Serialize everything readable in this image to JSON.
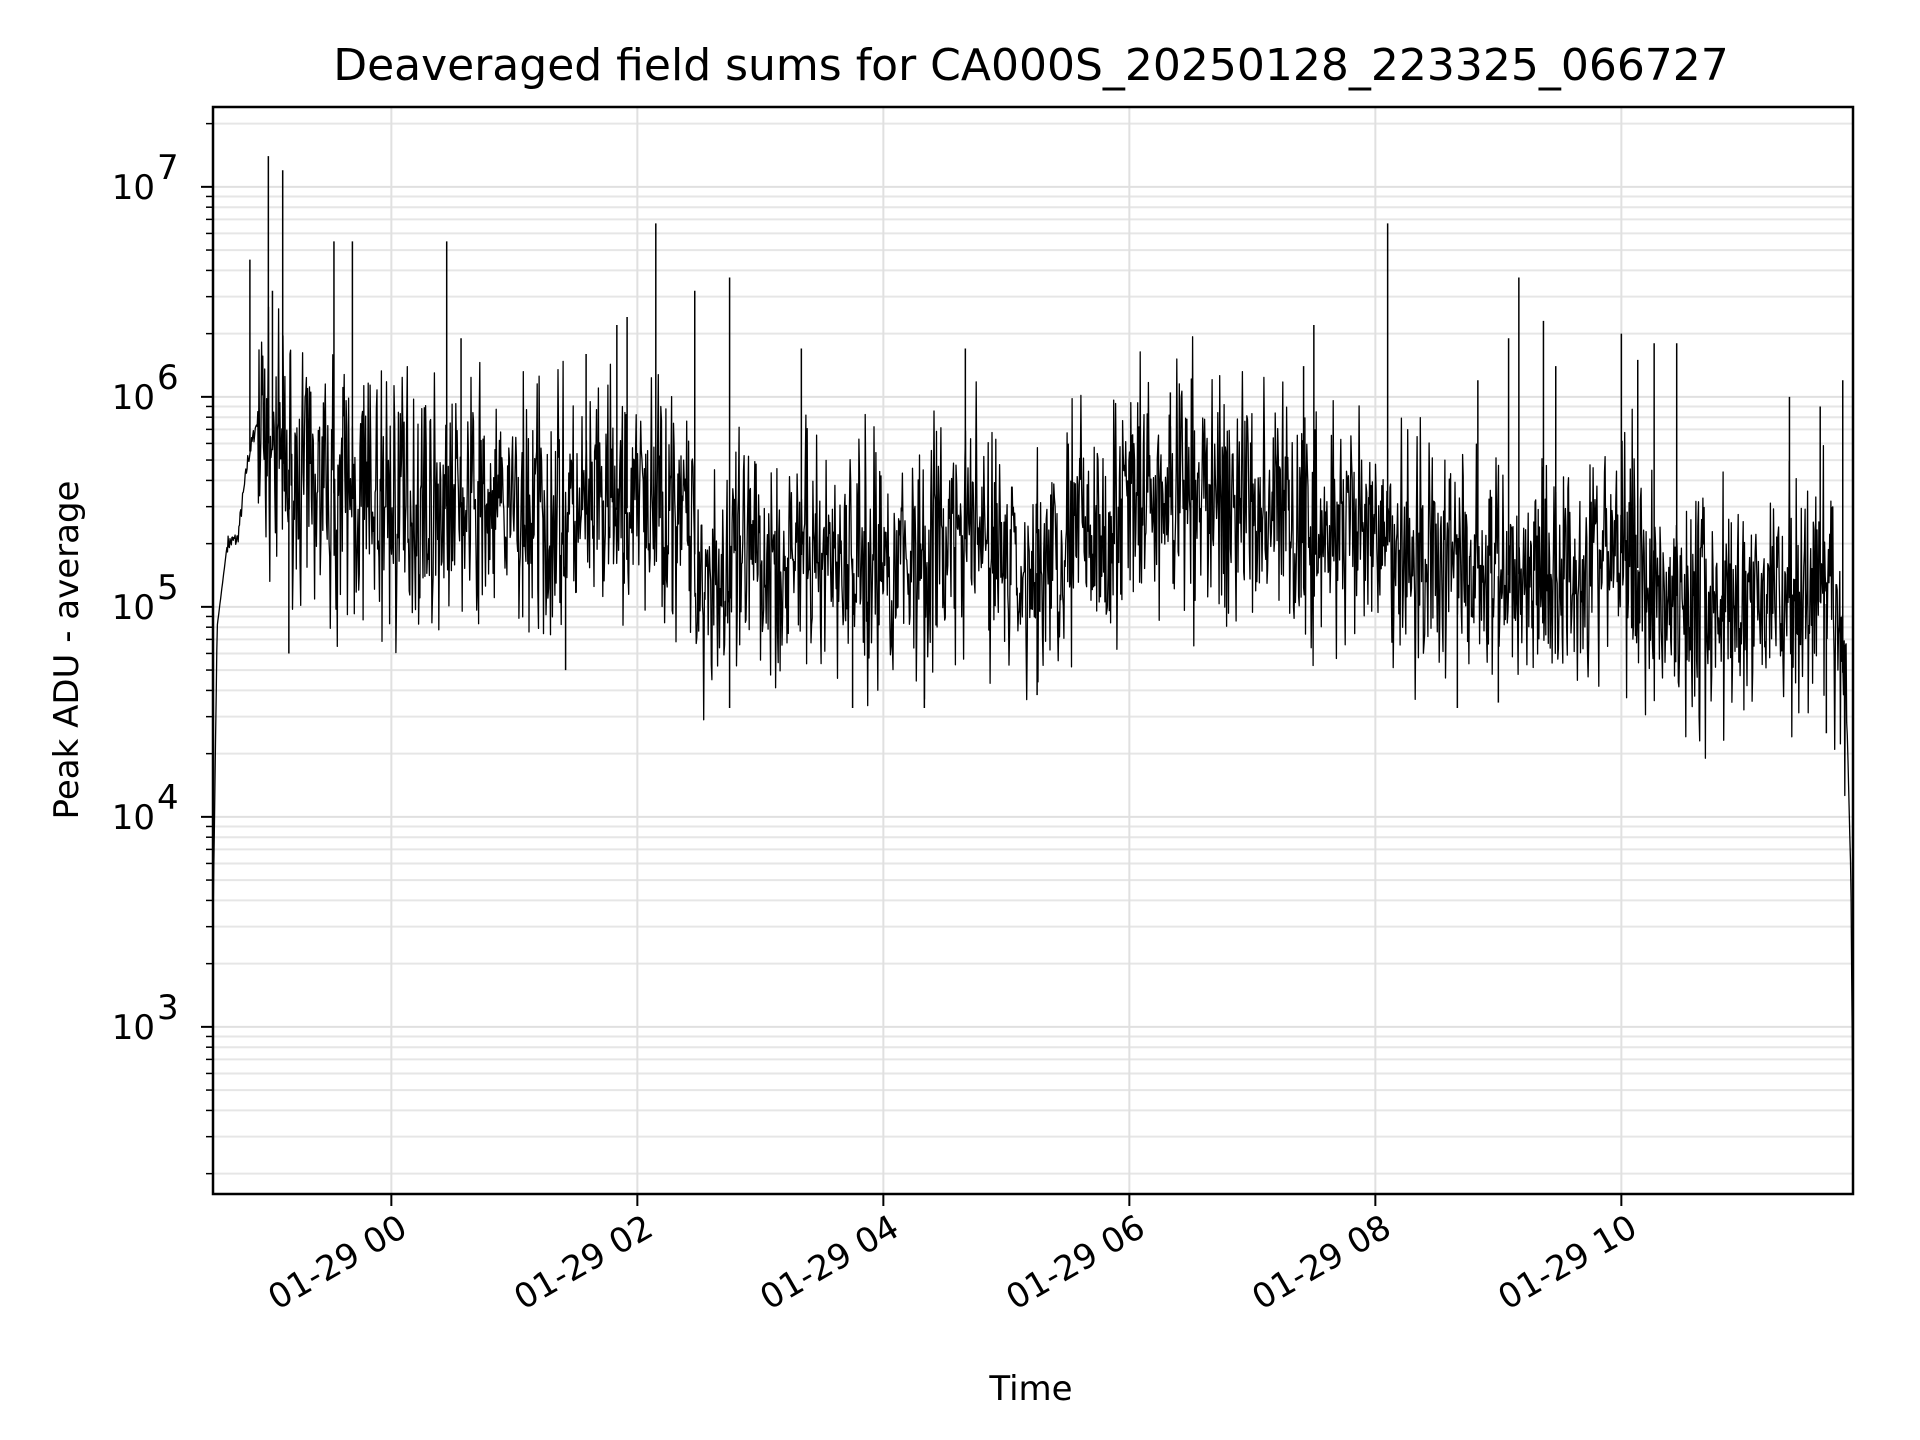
{
  "chart_data": {
    "type": "line",
    "title": "Deaveraged field sums for CA000S_20250128_223325_066727",
    "xlabel": "Time",
    "ylabel": "Peak ADU - average",
    "y_scale": "log",
    "ylim": [
      160,
      24000000
    ],
    "xlim": [
      "2025-01-28 22:33",
      "2025-01-29 11:53"
    ],
    "grid": true,
    "line_color": "#000000",
    "x_ticks": [
      {
        "label": "01-29 00",
        "time": "2025-01-29 00:00"
      },
      {
        "label": "01-29 02",
        "time": "2025-01-29 02:00"
      },
      {
        "label": "01-29 04",
        "time": "2025-01-29 04:00"
      },
      {
        "label": "01-29 06",
        "time": "2025-01-29 06:00"
      },
      {
        "label": "01-29 08",
        "time": "2025-01-29 08:00"
      },
      {
        "label": "01-29 10",
        "time": "2025-01-29 10:00"
      }
    ],
    "y_ticks": [
      {
        "base": "10",
        "exp": "3",
        "value": 1000
      },
      {
        "base": "10",
        "exp": "4",
        "value": 10000
      },
      {
        "base": "10",
        "exp": "5",
        "value": 100000
      },
      {
        "base": "10",
        "exp": "6",
        "value": 1000000
      },
      {
        "base": "10",
        "exp": "7",
        "value": 10000000
      }
    ],
    "series": [
      {
        "x": [
          "2025-01-28 22:33",
          "2025-01-28 22:35",
          "2025-01-28 22:40",
          "2025-01-28 22:45",
          "2025-01-28 22:50",
          "2025-01-28 22:55",
          "2025-01-28 23:00",
          "2025-01-28 23:05",
          "2025-01-28 23:10",
          "2025-01-28 23:15",
          "2025-01-28 23:20",
          "2025-01-28 23:30",
          "2025-01-28 23:45",
          "2025-01-29 00:00",
          "2025-01-29 00:30",
          "2025-01-29 01:00",
          "2025-01-29 01:30",
          "2025-01-29 02:00",
          "2025-01-29 02:20",
          "2025-01-29 02:30",
          "2025-01-29 02:45",
          "2025-01-29 03:00",
          "2025-01-29 03:30",
          "2025-01-29 04:00",
          "2025-01-29 04:30",
          "2025-01-29 04:50",
          "2025-01-29 05:10",
          "2025-01-29 05:30",
          "2025-01-29 06:00",
          "2025-01-29 06:30",
          "2025-01-29 07:00",
          "2025-01-29 07:15",
          "2025-01-29 07:30",
          "2025-01-29 08:00",
          "2025-01-29 08:30",
          "2025-01-29 09:00",
          "2025-01-29 09:30",
          "2025-01-29 10:00",
          "2025-01-29 10:20",
          "2025-01-29 10:40",
          "2025-01-29 11:00",
          "2025-01-29 11:30",
          "2025-01-29 11:45",
          "2025-01-29 11:50",
          "2025-01-29 11:52",
          "2025-01-29 11:53"
        ],
        "y": [
          3000,
          80000,
          200000,
          210000,
          500000,
          800000,
          600000,
          500000,
          450000,
          400000,
          380000,
          350000,
          330000,
          310000,
          300000,
          280000,
          270000,
          300000,
          350000,
          150000,
          140000,
          170000,
          180000,
          160000,
          200000,
          220000,
          130000,
          200000,
          300000,
          350000,
          320000,
          300000,
          220000,
          200000,
          180000,
          140000,
          150000,
          180000,
          120000,
          100000,
          110000,
          110000,
          100000,
          30000,
          5000,
          300
        ]
      }
    ],
    "spikes": [
      {
        "x": "2025-01-28 23:00",
        "y": 14000000
      },
      {
        "x": "2025-01-28 23:07",
        "y": 12000000
      },
      {
        "x": "2025-01-28 22:51",
        "y": 4500000
      },
      {
        "x": "2025-01-28 23:02",
        "y": 3200000
      },
      {
        "x": "2025-01-28 23:32",
        "y": 5500000
      },
      {
        "x": "2025-01-28 23:41",
        "y": 5500000
      },
      {
        "x": "2025-01-29 00:27",
        "y": 5500000
      },
      {
        "x": "2025-01-29 00:34",
        "y": 1900000
      },
      {
        "x": "2025-01-29 01:35",
        "y": 1600000
      },
      {
        "x": "2025-01-29 01:50",
        "y": 2200000
      },
      {
        "x": "2025-01-29 01:55",
        "y": 2400000
      },
      {
        "x": "2025-01-29 02:09",
        "y": 6700000
      },
      {
        "x": "2025-01-29 02:28",
        "y": 3200000
      },
      {
        "x": "2025-01-29 02:45",
        "y": 3700000
      },
      {
        "x": "2025-01-29 03:20",
        "y": 1700000
      },
      {
        "x": "2025-01-29 04:40",
        "y": 1700000
      },
      {
        "x": "2025-01-29 06:20",
        "y": 1050000
      },
      {
        "x": "2025-01-29 07:25",
        "y": 1400000
      },
      {
        "x": "2025-01-29 07:30",
        "y": 2200000
      },
      {
        "x": "2025-01-29 08:06",
        "y": 6700000
      },
      {
        "x": "2025-01-29 08:50",
        "y": 1200000
      },
      {
        "x": "2025-01-29 09:05",
        "y": 1900000
      },
      {
        "x": "2025-01-29 09:10",
        "y": 3700000
      },
      {
        "x": "2025-01-29 09:22",
        "y": 2300000
      },
      {
        "x": "2025-01-29 09:28",
        "y": 1400000
      },
      {
        "x": "2025-01-29 10:00",
        "y": 2000000
      },
      {
        "x": "2025-01-29 10:08",
        "y": 1500000
      },
      {
        "x": "2025-01-29 10:16",
        "y": 1800000
      },
      {
        "x": "2025-01-29 10:27",
        "y": 1800000
      },
      {
        "x": "2025-01-29 11:22",
        "y": 1000000
      },
      {
        "x": "2025-01-29 11:37",
        "y": 900000
      },
      {
        "x": "2025-01-29 11:48",
        "y": 1200000
      }
    ],
    "dips": [
      {
        "x": "2025-01-28 23:10",
        "y": 60000
      },
      {
        "x": "2025-01-29 01:25",
        "y": 50000
      },
      {
        "x": "2025-01-29 02:45",
        "y": 33000
      },
      {
        "x": "2025-01-29 03:45",
        "y": 33000
      },
      {
        "x": "2025-01-29 04:20",
        "y": 33000
      },
      {
        "x": "2025-01-29 05:15",
        "y": 38000
      },
      {
        "x": "2025-01-29 08:40",
        "y": 33000
      },
      {
        "x": "2025-01-29 09:00",
        "y": 35000
      },
      {
        "x": "2025-01-29 11:40",
        "y": 25000
      }
    ]
  }
}
